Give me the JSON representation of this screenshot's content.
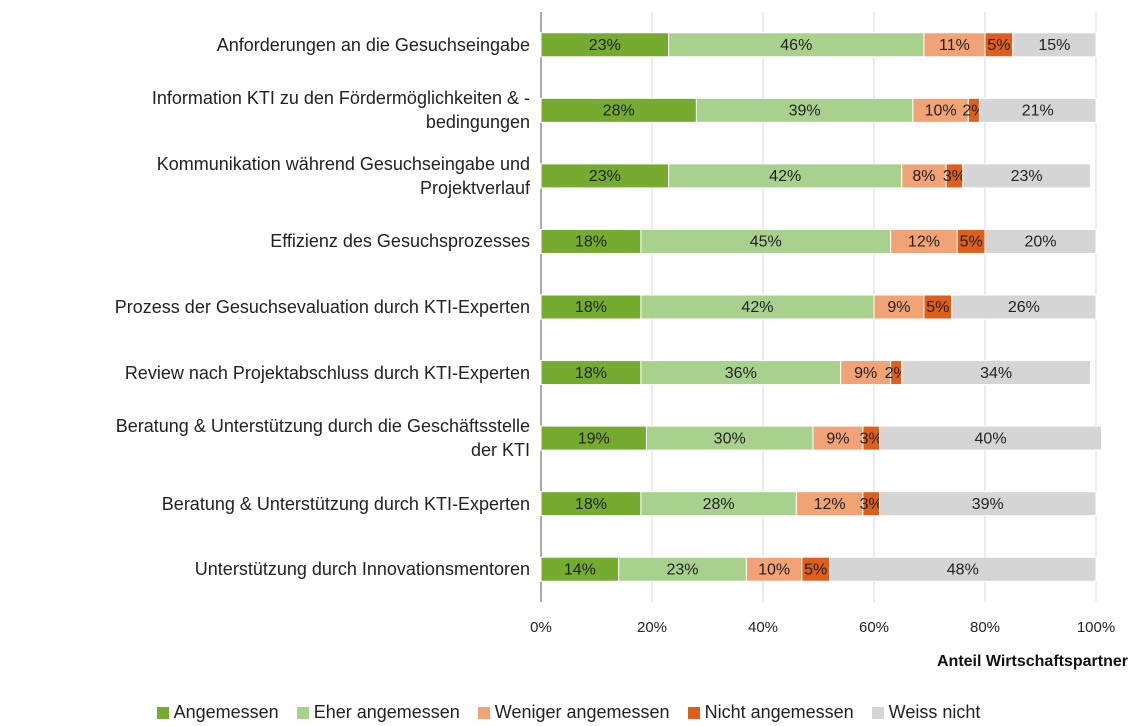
{
  "chart_data": {
    "type": "stacked_barh",
    "categories": [
      "Anforderungen an die Gesuchseingabe",
      "Information KTI zu den Fördermöglichkeiten & -\nbedingungen",
      "Kommunikation während Gesuchseingabe und\nProjektverlauf",
      "Effizienz des Gesuchsprozesses",
      "Prozess der Gesuchsevaluation durch KTI-Experten",
      "Review nach Projektabschluss durch KTI-Experten",
      "Beratung & Unterstützung durch die Geschäftsstelle\nder KTI",
      "Beratung & Unterstützung durch KTI-Experten",
      "Unterstützung durch Innovationsmentoren"
    ],
    "series": [
      {
        "name": "Angemessen",
        "color": "#75ab2e",
        "values": [
          23,
          28,
          23,
          18,
          18,
          18,
          19,
          18,
          14
        ],
        "value_labels": [
          "23%",
          "28%",
          "23%",
          "18%",
          "18%",
          "18%",
          "19%",
          "18%",
          "14%"
        ]
      },
      {
        "name": "Eher angemessen",
        "color": "#a9d18e",
        "values": [
          46,
          39,
          42,
          45,
          42,
          36,
          30,
          28,
          23
        ],
        "value_labels": [
          "46%",
          "39%",
          "42%",
          "45%",
          "42%",
          "36%",
          "30%",
          "28%",
          "23%"
        ]
      },
      {
        "name": "Weniger angemessen",
        "color": "#f2a375",
        "values": [
          11,
          10,
          8,
          12,
          9,
          9,
          9,
          12,
          10
        ],
        "value_labels": [
          "11%",
          "10%",
          "8%",
          "12%",
          "9%",
          "9%",
          "9%",
          "12%",
          "10%"
        ]
      },
      {
        "name": "Nicht angemessen",
        "color": "#de5f1c",
        "values": [
          5,
          2,
          3,
          5,
          5,
          2,
          3,
          3,
          5
        ],
        "value_labels": [
          "5%",
          "2%",
          "3%",
          "5%",
          "5%",
          "2%",
          "3%",
          "3%",
          "5%"
        ]
      },
      {
        "name": "Weiss nicht",
        "color": "#d5d5d5",
        "values": [
          15,
          21,
          23,
          20,
          26,
          34,
          40,
          39,
          48
        ],
        "value_labels": [
          "15%",
          "21%",
          "23%",
          "20%",
          "26%",
          "34%",
          "40%",
          "39%",
          "48%"
        ]
      }
    ],
    "xlabel": "Anteil Wirtschaftspartner",
    "xlim": [
      0,
      100
    ],
    "xticks": [
      {
        "value": 0,
        "label": "0%"
      },
      {
        "value": 20,
        "label": "20%"
      },
      {
        "value": 40,
        "label": "40%"
      },
      {
        "value": 60,
        "label": "60%"
      },
      {
        "value": 80,
        "label": "80%"
      },
      {
        "value": 100,
        "label": "100%"
      }
    ],
    "grid": true,
    "legend": "bottom"
  }
}
